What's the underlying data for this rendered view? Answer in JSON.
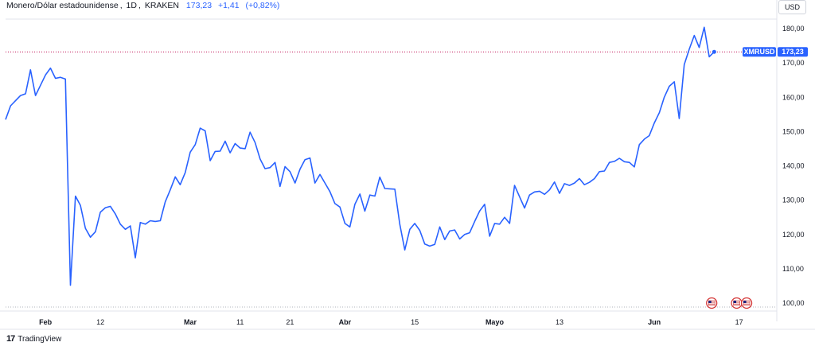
{
  "header": {
    "symbol_description": "Monero/Dólar estadounidense",
    "interval": "1D",
    "exchange": "KRAKEN",
    "last_price": "173,23",
    "change": "+1,41",
    "change_pct": "(+0,82%)"
  },
  "currency_button": "USD",
  "footer": {
    "logo_text": "17",
    "brand": "TradingView"
  },
  "price_tag": {
    "symbol": "XMRUSD",
    "value": "173,23"
  },
  "colors": {
    "line": "#2962ff",
    "price_line": "#c2185b",
    "accent": "#2962ff"
  },
  "icons": [
    "us-flag-event-icon"
  ],
  "chart_data": {
    "type": "line",
    "title": "",
    "ylabel": "",
    "xlabel": "",
    "ylim": [
      98,
      183
    ],
    "grid": false,
    "y_ticks": [
      100,
      110,
      120,
      130,
      140,
      150,
      160,
      170,
      180
    ],
    "y_tick_labels": [
      "100,00",
      "110,00",
      "120,00",
      "130,00",
      "140,00",
      "150,00",
      "160,00",
      "170,00",
      "180,00"
    ],
    "x_ticks": [
      {
        "label": "Feb",
        "index": 8,
        "major": true
      },
      {
        "label": "12",
        "index": 19,
        "major": false
      },
      {
        "label": "Mar",
        "index": 37,
        "major": true
      },
      {
        "label": "11",
        "index": 47,
        "major": false
      },
      {
        "label": "21",
        "index": 57,
        "major": false
      },
      {
        "label": "Abr",
        "index": 68,
        "major": true
      },
      {
        "label": "15",
        "index": 82,
        "major": false
      },
      {
        "label": "Mayo",
        "index": 98,
        "major": true
      },
      {
        "label": "13",
        "index": 111,
        "major": false
      },
      {
        "label": "Jun",
        "index": 130,
        "major": true
      },
      {
        "label": "17",
        "index": 147,
        "major": false
      }
    ],
    "x_count": 155,
    "last_index": 143,
    "last_value": 173.23,
    "event_markers": [
      141.5,
      146.5,
      148.5
    ],
    "series": [
      {
        "values": [
          153.5,
          157.5,
          159,
          160.5,
          161,
          168,
          160.5,
          163.5,
          166.5,
          168.5,
          165.5,
          165.8,
          165.3,
          105.2,
          131.2,
          128.5,
          121.8,
          119.2,
          120.8,
          126.5,
          127.8,
          128.2,
          126,
          123,
          121.5,
          122.5,
          113.2,
          123.5,
          123,
          124,
          123.8,
          124,
          129.5,
          133,
          136.8,
          134.5,
          138,
          144,
          146.2,
          151,
          150.2,
          141.5,
          144.2,
          144.3,
          147.2,
          143.8,
          146.5,
          145.2,
          145,
          149.8,
          146.8,
          142,
          139.2,
          139.5,
          141,
          134,
          139.8,
          138.3,
          135,
          139,
          141.8,
          142.3,
          135,
          137.5,
          135,
          132.5,
          129,
          128,
          123.2,
          122.2,
          128.8,
          131.8,
          126.8,
          131.5,
          131.2,
          136.7,
          133.4,
          133.3,
          133.2,
          123,
          115.5,
          121.5,
          123.2,
          121.2,
          117.2,
          116.6,
          117.1,
          122.2,
          118.5,
          121,
          121.3,
          118.7,
          120,
          120.5,
          123.8,
          126.8,
          128.8,
          119.5,
          123.2,
          123,
          125,
          123.2,
          134.3,
          131,
          127.7,
          131.5,
          132.4,
          132.6,
          131.7,
          133,
          135.3,
          132,
          134.8,
          134.3,
          135,
          136.3,
          134.5,
          135.2,
          136.3,
          138.3,
          138.5,
          141,
          141.3,
          142.2,
          141.2,
          141,
          139.7,
          146.2,
          147.8,
          148.8,
          152.5,
          155.5,
          160,
          163.2,
          164.5,
          153.8,
          169.5,
          174,
          178,
          174.5,
          180.4,
          171.8,
          173.23
        ]
      }
    ]
  }
}
